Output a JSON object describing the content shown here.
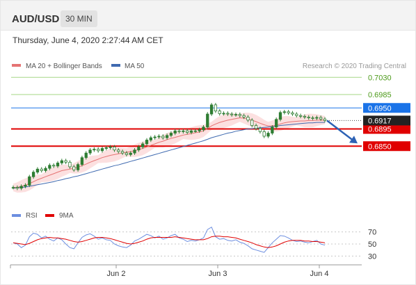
{
  "header": {
    "pair": "AUD/USD",
    "timeframe": "30 MIN"
  },
  "datetime": "Thursday, June 4, 2020 2:27:44 AM CET",
  "legend": {
    "ma20_label": "MA 20 + Bollinger Bands",
    "ma50_label": "MA 50",
    "credit": "Research © 2020 Trading Central",
    "rsi_label": "RSI",
    "ma9_label": "9MA"
  },
  "colors": {
    "candle": "#2e7d32",
    "ma20": "#e57373",
    "ma50": "#3f6ab0",
    "bands": "#fbdada",
    "resistance": "#a6d785",
    "support": "#e00000",
    "pivot": "#1a73e8",
    "rsi": "#6c8ee0",
    "rsi_ma": "#e00000",
    "last_price": "#222222"
  },
  "chart_data": [
    {
      "type": "line",
      "title": "",
      "x_ticks": [
        "Jun 2",
        "Jun 3",
        "Jun 4"
      ],
      "ylim": [
        0.6705,
        0.7045
      ],
      "levels": [
        {
          "value": 0.703,
          "label": "0.7030",
          "kind": "resistance"
        },
        {
          "value": 0.6985,
          "label": "0.6985",
          "kind": "resistance"
        },
        {
          "value": 0.695,
          "label": "0.6950",
          "kind": "pivot"
        },
        {
          "value": 0.6895,
          "label": "0.6895",
          "kind": "support"
        },
        {
          "value": 0.685,
          "label": "0.6850",
          "kind": "support"
        }
      ],
      "last_price": {
        "value": 0.6917,
        "label": "0.6917"
      },
      "forecast": {
        "from": 0.6917,
        "to": 0.685,
        "direction": "down"
      },
      "series": [
        {
          "name": "Price",
          "values": [
            0.6742,
            0.674,
            0.6745,
            0.6748,
            0.677,
            0.6782,
            0.679,
            0.6786,
            0.6792,
            0.68,
            0.6798,
            0.6806,
            0.6812,
            0.6808,
            0.6796,
            0.6788,
            0.6802,
            0.682,
            0.6832,
            0.684,
            0.6842,
            0.6838,
            0.6844,
            0.6846,
            0.6848,
            0.684,
            0.6836,
            0.6832,
            0.6828,
            0.6832,
            0.684,
            0.6848,
            0.6856,
            0.6866,
            0.6872,
            0.6874,
            0.6876,
            0.6872,
            0.6878,
            0.6884,
            0.689,
            0.6888,
            0.689,
            0.6886,
            0.689,
            0.689,
            0.6893,
            0.69,
            0.6934,
            0.6958,
            0.6942,
            0.6935,
            0.6936,
            0.6934,
            0.6932,
            0.6933,
            0.693,
            0.6926,
            0.6918,
            0.6904,
            0.6896,
            0.6888,
            0.6876,
            0.6884,
            0.69,
            0.692,
            0.6938,
            0.694,
            0.6937,
            0.6934,
            0.693,
            0.6928,
            0.6926,
            0.6924,
            0.6923,
            0.6925,
            0.6921,
            0.6917
          ]
        },
        {
          "name": "MA 20",
          "values": [
            0.6742,
            0.6742,
            0.6745,
            0.6748,
            0.6752,
            0.6757,
            0.6762,
            0.6766,
            0.677,
            0.6774,
            0.6778,
            0.6782,
            0.6786,
            0.6788,
            0.679,
            0.6792,
            0.6795,
            0.6799,
            0.6803,
            0.6808,
            0.6812,
            0.6816,
            0.682,
            0.6823,
            0.6826,
            0.6828,
            0.683,
            0.6832,
            0.6834,
            0.6836,
            0.6838,
            0.6841,
            0.6844,
            0.6848,
            0.6852,
            0.6856,
            0.686,
            0.6863,
            0.6867,
            0.687,
            0.6873,
            0.6876,
            0.6879,
            0.6881,
            0.6883,
            0.6885,
            0.6887,
            0.689,
            0.6896,
            0.6903,
            0.6908,
            0.6912,
            0.6915,
            0.6918,
            0.692,
            0.6922,
            0.6924,
            0.6923,
            0.6921,
            0.6918,
            0.6914,
            0.691,
            0.6906,
            0.6903,
            0.6903,
            0.6905,
            0.6908,
            0.6911,
            0.6913,
            0.6914,
            0.6915,
            0.6916,
            0.6916,
            0.6917,
            0.6917,
            0.6918,
            0.6918,
            0.6918
          ]
        },
        {
          "name": "MA 50",
          "values": [
            0.674,
            0.6741,
            0.6742,
            0.6743,
            0.6745,
            0.6747,
            0.6749,
            0.6751,
            0.6753,
            0.6755,
            0.6757,
            0.676,
            0.6762,
            0.6765,
            0.6767,
            0.677,
            0.6772,
            0.6775,
            0.6778,
            0.6781,
            0.6784,
            0.6787,
            0.679,
            0.6793,
            0.6796,
            0.6799,
            0.6801,
            0.6804,
            0.6807,
            0.681,
            0.6813,
            0.6816,
            0.6819,
            0.6822,
            0.6825,
            0.6828,
            0.6831,
            0.6834,
            0.6837,
            0.684,
            0.6843,
            0.6846,
            0.6849,
            0.6852,
            0.6855,
            0.6858,
            0.6861,
            0.6864,
            0.6868,
            0.6872,
            0.6875,
            0.6878,
            0.6881,
            0.6884,
            0.6886,
            0.6889,
            0.6891,
            0.6893,
            0.6895,
            0.6896,
            0.6897,
            0.6898,
            0.6899,
            0.69,
            0.6901,
            0.6902,
            0.6904,
            0.6905,
            0.6906,
            0.6907,
            0.6908,
            0.6909,
            0.691,
            0.6911,
            0.6911,
            0.6912,
            0.6912,
            0.6912
          ]
        }
      ]
    },
    {
      "type": "line",
      "title": "",
      "ylim": [
        20,
        80
      ],
      "y_ticks": [
        70,
        50,
        30
      ],
      "series": [
        {
          "name": "RSI",
          "values": [
            52,
            50,
            44,
            48,
            62,
            68,
            66,
            60,
            63,
            58,
            55,
            60,
            57,
            50,
            44,
            42,
            52,
            61,
            65,
            67,
            63,
            58,
            60,
            57,
            56,
            50,
            47,
            45,
            44,
            48,
            55,
            58,
            62,
            66,
            64,
            60,
            63,
            58,
            60,
            64,
            66,
            60,
            58,
            54,
            56,
            55,
            57,
            60,
            74,
            78,
            62,
            58,
            59,
            56,
            55,
            57,
            53,
            51,
            47,
            42,
            40,
            38,
            36,
            44,
            52,
            58,
            64,
            63,
            60,
            56,
            54,
            55,
            53,
            52,
            54,
            56,
            50,
            48
          ]
        },
        {
          "name": "9MA",
          "values": [
            52,
            51,
            50,
            49,
            51,
            54,
            57,
            59,
            60,
            61,
            60,
            60,
            59,
            58,
            56,
            54,
            53,
            54,
            56,
            58,
            60,
            61,
            61,
            60,
            59,
            57,
            55,
            53,
            51,
            50,
            51,
            53,
            55,
            58,
            60,
            61,
            61,
            61,
            61,
            61,
            62,
            61,
            60,
            59,
            58,
            57,
            57,
            57,
            59,
            62,
            63,
            63,
            62,
            62,
            61,
            60,
            58,
            56,
            54,
            52,
            49,
            47,
            45,
            44,
            45,
            47,
            50,
            53,
            55,
            56,
            56,
            56,
            55,
            55,
            54,
            54,
            53,
            52
          ]
        }
      ]
    }
  ]
}
